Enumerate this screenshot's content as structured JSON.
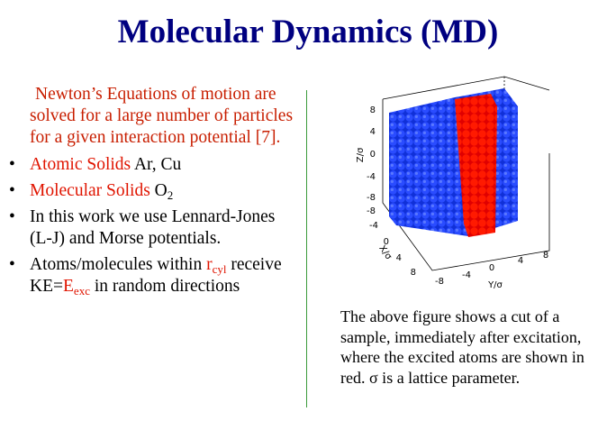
{
  "title": "Molecular Dynamics (MD)",
  "intro": "Newton’s Equations of motion are solved for a large number of particles for a given interaction potential [7].",
  "bullets": [
    [
      "Atomic Solids",
      " Ar, Cu"
    ],
    [
      "Molecular Solids",
      " O",
      "2"
    ],
    [
      "In this work we use Lennard-Jones (L-J) and Morse potentials."
    ],
    [
      "Atoms/molecules within ",
      "r",
      "cyl",
      " receive KE=",
      "E",
      "exc",
      " in random directions"
    ]
  ],
  "figure": {
    "z_label": "Z/σ",
    "x_label": "X/σ",
    "y_label": "Y/σ",
    "z_ticks": [
      "8",
      "4",
      "0",
      "-4",
      "-8"
    ],
    "x_ticks": [
      "-8",
      "-4",
      "0",
      "4",
      "8"
    ],
    "y_ticks": [
      "-8",
      "-4",
      "0",
      "4",
      "8"
    ]
  },
  "caption": "The above figure shows a cut of a sample, immediately after excitation, where the excited atoms are shown in red. σ is a lattice parameter."
}
